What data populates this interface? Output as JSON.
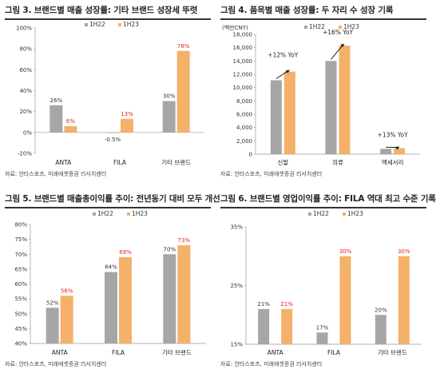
{
  "colors": {
    "h22": "#a6a6a6",
    "h23": "#f4b16a",
    "label_h23": "#e8231f",
    "label_h22": "#333333"
  },
  "legend": {
    "h22": "1H22",
    "h23": "1H23"
  },
  "chart_data": [
    {
      "type": "bar",
      "title": "그림 3. 브랜드별 매출 성장률: 기타 브랜드 성장세 뚜렷",
      "source": "자료: 안타스포츠, 미래에셋증권 리서치센터",
      "categories": [
        "ANTA",
        "FILA",
        "기타 브랜드"
      ],
      "series": [
        {
          "name": "1H22",
          "values": [
            26,
            -0.5,
            30
          ],
          "labels": [
            "26%",
            "-0.5%",
            "30%"
          ]
        },
        {
          "name": "1H23",
          "values": [
            6,
            13,
            78
          ],
          "labels": [
            "6%",
            "13%",
            "78%"
          ]
        }
      ],
      "ylim": [
        -20,
        100
      ],
      "yticks": [
        -20,
        0,
        20,
        40,
        60,
        80,
        100
      ],
      "ytick_labels": [
        "-20%",
        "0%",
        "20%",
        "40%",
        "60%",
        "80%",
        "100%"
      ],
      "annotations": [],
      "unit_label": ""
    },
    {
      "type": "bar",
      "title": "그림 4. 품목별 매출 성장률: 두 자리 수 성장 기록",
      "source": "자료: 안타스포츠, 미래에셋증권 리서치센터",
      "categories": [
        "신발",
        "의류",
        "액세서리"
      ],
      "series": [
        {
          "name": "1H22",
          "values": [
            11100,
            14000,
            800
          ],
          "labels": []
        },
        {
          "name": "1H23",
          "values": [
            12400,
            16300,
            900
          ],
          "labels": []
        }
      ],
      "ylim": [
        0,
        18000
      ],
      "yticks": [
        0,
        2000,
        4000,
        6000,
        8000,
        10000,
        12000,
        14000,
        16000,
        18000
      ],
      "ytick_labels": [
        "0",
        "2,000",
        "4,000",
        "6,000",
        "8,000",
        "10,000",
        "12,000",
        "14,000",
        "16,000",
        "18,000"
      ],
      "annotations": [
        "+12% YoY",
        "+16% YoY",
        "+13% YoY"
      ],
      "unit_label": "(백만CNY)"
    },
    {
      "type": "bar",
      "title": "그림 5. 브랜드별 매출총이익률 추이: 전년동기 대비 모두 개선",
      "source": "자료: 안타스포츠, 미래에셋증권 리서치센터",
      "categories": [
        "ANTA",
        "FILA",
        "기타 브랜드"
      ],
      "series": [
        {
          "name": "1H22",
          "values": [
            52,
            64,
            70
          ],
          "labels": [
            "52%",
            "64%",
            "70%"
          ]
        },
        {
          "name": "1H23",
          "values": [
            56,
            69,
            73
          ],
          "labels": [
            "56%",
            "69%",
            "73%"
          ]
        }
      ],
      "ylim": [
        40,
        80
      ],
      "yticks": [
        40,
        45,
        50,
        55,
        60,
        65,
        70,
        75,
        80
      ],
      "ytick_labels": [
        "40%",
        "45%",
        "50%",
        "55%",
        "60%",
        "65%",
        "70%",
        "75%",
        "80%"
      ],
      "annotations": [],
      "unit_label": ""
    },
    {
      "type": "bar",
      "title": "그림 6. 브랜드별 영업이익률 추이: FILA 역대 최고 수준 기록",
      "source": "자료: 안타스포츠, 미래에셋증권 리서치센터",
      "categories": [
        "ANTA",
        "FILA",
        "기타 브랜드"
      ],
      "series": [
        {
          "name": "1H22",
          "values": [
            21,
            17,
            20
          ],
          "labels": [
            "21%",
            "17%",
            "20%"
          ]
        },
        {
          "name": "1H23",
          "values": [
            21,
            30,
            30
          ],
          "labels": [
            "21%",
            "30%",
            "30%"
          ]
        }
      ],
      "ylim": [
        15,
        35
      ],
      "yticks": [
        15,
        25,
        35
      ],
      "ytick_labels": [
        "15%",
        "25%",
        "35%"
      ],
      "annotations": [],
      "unit_label": ""
    }
  ]
}
